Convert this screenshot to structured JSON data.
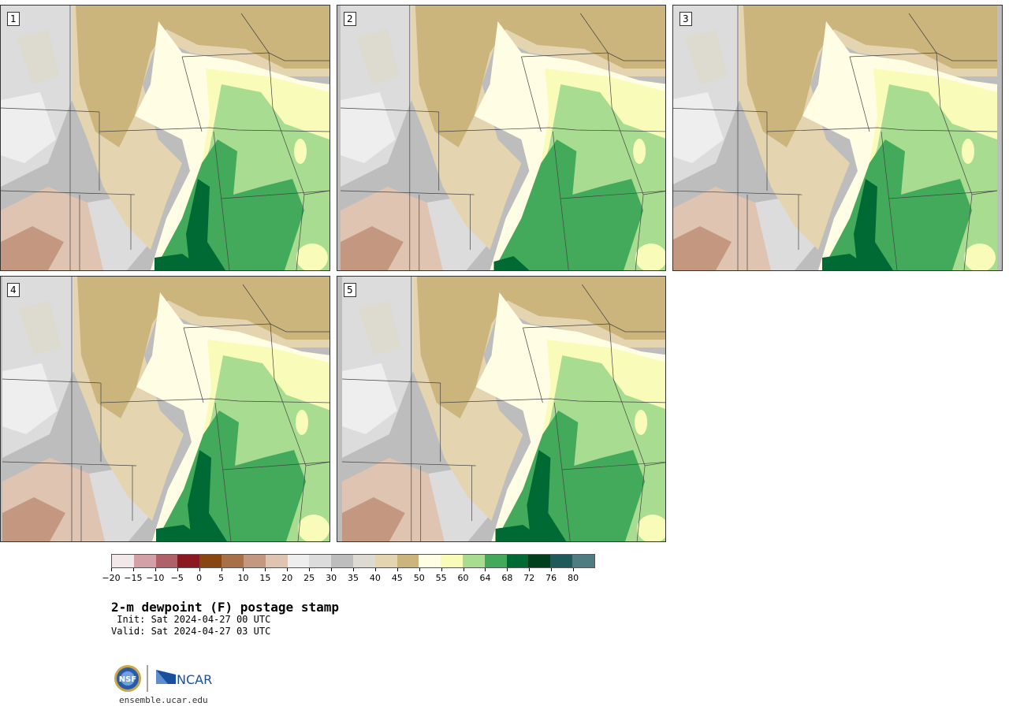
{
  "panels": [
    {
      "label": "1"
    },
    {
      "label": "2"
    },
    {
      "label": "3"
    },
    {
      "label": "4"
    },
    {
      "label": "5"
    }
  ],
  "legend": {
    "ticks": [
      "−20",
      "−15",
      "−10",
      "−5",
      "0",
      "5",
      "10",
      "15",
      "20",
      "25",
      "30",
      "35",
      "40",
      "45",
      "50",
      "55",
      "60",
      "64",
      "68",
      "72",
      "76",
      "80"
    ],
    "colors": [
      "#f2e8ea",
      "#d4a0a8",
      "#b06068",
      "#8b1a20",
      "#8a4610",
      "#a87048",
      "#c49880",
      "#dfc4b2",
      "#eeeeee",
      "#dcdcdc",
      "#bdbdbd",
      "#dddbd0",
      "#e4d5b0",
      "#cbb57d",
      "#fffde4",
      "#f8fcb8",
      "#a8dc90",
      "#42aa5a",
      "#006a34",
      "#00401e",
      "#1f5a5a",
      "#4f7c80"
    ]
  },
  "title": "2-m dewpoint (F) postage stamp",
  "init": " Init: Sat 2024-04-27 00 UTC",
  "valid": "Valid: Sat 2024-04-27 03 UTC",
  "logo": {
    "nsf": "NSF",
    "ncar": "NCAR"
  },
  "site": "ensemble.ucar.edu"
}
